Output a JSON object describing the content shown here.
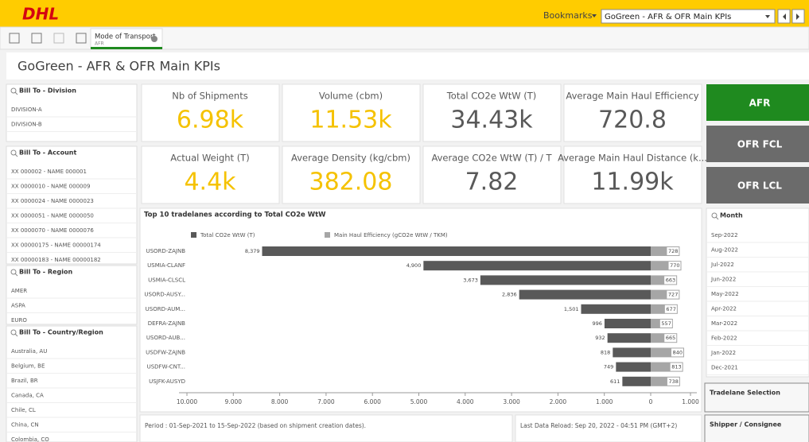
{
  "topbar": {
    "logo": "DHL",
    "bookmarks": "Bookmarks",
    "sheet_select": "GoGreen - AFR & OFR Main KPIs"
  },
  "toolbar": {
    "selection_field": "Mode of Transport",
    "selection_value": "AFR"
  },
  "sheet_title": "GoGreen - AFR & OFR Main KPIs",
  "filters": [
    {
      "title": "Bill To - Division",
      "items": [
        "DIVISION-A",
        "DIVISION-B"
      ]
    },
    {
      "title": "Bill To - Account",
      "items": [
        "XX 000002 - NAME 000001",
        "XX 0000010 - NAME 000009",
        "XX 0000024 - NAME 0000023",
        "XX 0000051 - NAME 0000050",
        "XX 0000070 - NAME 0000076",
        "XX 00000175 - NAME 00000174",
        "XX 00000183 - NAME 00000182"
      ]
    },
    {
      "title": "Bill To - Region",
      "items": [
        "AMER",
        "ASPA",
        "EURO"
      ]
    },
    {
      "title": "Bill To - Country/Region",
      "items": [
        "Australia, AU",
        "Belgium, BE",
        "Brazil, BR",
        "Canada, CA",
        "Chile, CL",
        "China, CN",
        "Colombia, CO"
      ]
    }
  ],
  "kpis": [
    {
      "label": "Nb of Shipments",
      "value": "6.98k",
      "color": "#f5c200"
    },
    {
      "label": "Volume (cbm)",
      "value": "11.53k",
      "color": "#f5c200"
    },
    {
      "label": "Total CO2e WtW (T)",
      "value": "34.43k",
      "color": "#595959"
    },
    {
      "label": "Average Main Haul Efficiency",
      "value": "720.8",
      "color": "#595959"
    },
    {
      "label": "Actual Weight (T)",
      "value": "4.4k",
      "color": "#f5c200"
    },
    {
      "label": "Average Density (kg/cbm)",
      "value": "382.08",
      "color": "#f5c200"
    },
    {
      "label": "Average CO2e WtW (T) / T",
      "value": "7.82",
      "color": "#595959"
    },
    {
      "label": "Average Main Haul Distance (k...",
      "value": "11.99k",
      "color": "#595959"
    }
  ],
  "mode_buttons": [
    {
      "label": "AFR",
      "color": "#1f8a1f"
    },
    {
      "label": "OFR FCL",
      "color": "#6b6b6b"
    },
    {
      "label": "OFR LCL",
      "color": "#6b6b6b"
    }
  ],
  "month_filter": {
    "title": "Month",
    "items": [
      "Sep-2022",
      "Aug-2022",
      "Jul-2022",
      "Jun-2022",
      "May-2022",
      "Apr-2022",
      "Mar-2022",
      "Feb-2022",
      "Jan-2022",
      "Dec-2021"
    ]
  },
  "side_panels": [
    "Tradelane Selection",
    "Shipper / Consignee"
  ],
  "chart_data": {
    "type": "bar",
    "orientation": "horizontal-diverging",
    "title": "Top 10 tradelanes according to Total CO2e WtW",
    "categories": [
      "USORD-ZAJNB",
      "USMIA-CLANF",
      "USMIA-CLSCL",
      "USORD-AUSY...",
      "USORD-AUM...",
      "DEFRA-ZAJNB",
      "USORD-AUB...",
      "USDFW-ZAJNB",
      "USDFW-CNT...",
      "USJFK-AUSYD"
    ],
    "series": [
      {
        "name": "Total CO2e WtW (T)",
        "color": "#595959",
        "values": [
          8379,
          4900,
          3673,
          2836,
          1501,
          996,
          932,
          818,
          749,
          611
        ],
        "value_labels": [
          "8,379",
          "4,900",
          "3,673",
          "2,836",
          "1,501",
          "996",
          "932",
          "818",
          "749",
          "611"
        ]
      },
      {
        "name": "Main Haul Efficiency (gCO2e WtW / TKM)",
        "color": "#a6a6a6",
        "axis": "x2",
        "values": [
          728,
          770,
          663,
          727,
          677,
          557,
          665,
          840,
          813,
          738
        ]
      }
    ],
    "xlim": [
      10000,
      0
    ],
    "xticks": [
      {
        "value": 10000,
        "label": "10.000"
      },
      {
        "value": 9000,
        "label": "9.000"
      },
      {
        "value": 8000,
        "label": "8.000"
      },
      {
        "value": 7000,
        "label": "7.000"
      },
      {
        "value": 6000,
        "label": "6.000"
      },
      {
        "value": 5000,
        "label": "5.000"
      },
      {
        "value": 4000,
        "label": "4.000"
      },
      {
        "value": 3000,
        "label": "3.000"
      },
      {
        "value": 2000,
        "label": "2.000"
      },
      {
        "value": 1000,
        "label": "1.000"
      },
      0
    ],
    "x2lim": [
      0,
      1000
    ],
    "x2ticks": [
      {
        "value": 1000,
        "label": "1.000"
      }
    ]
  },
  "footer": {
    "period": "Period : 01-Sep-2021 to 15-Sep-2022 (based on shipment creation dates).",
    "reload": "Last Data Reload: Sep 20, 2022 - 04:51 PM (GMT+2)"
  }
}
